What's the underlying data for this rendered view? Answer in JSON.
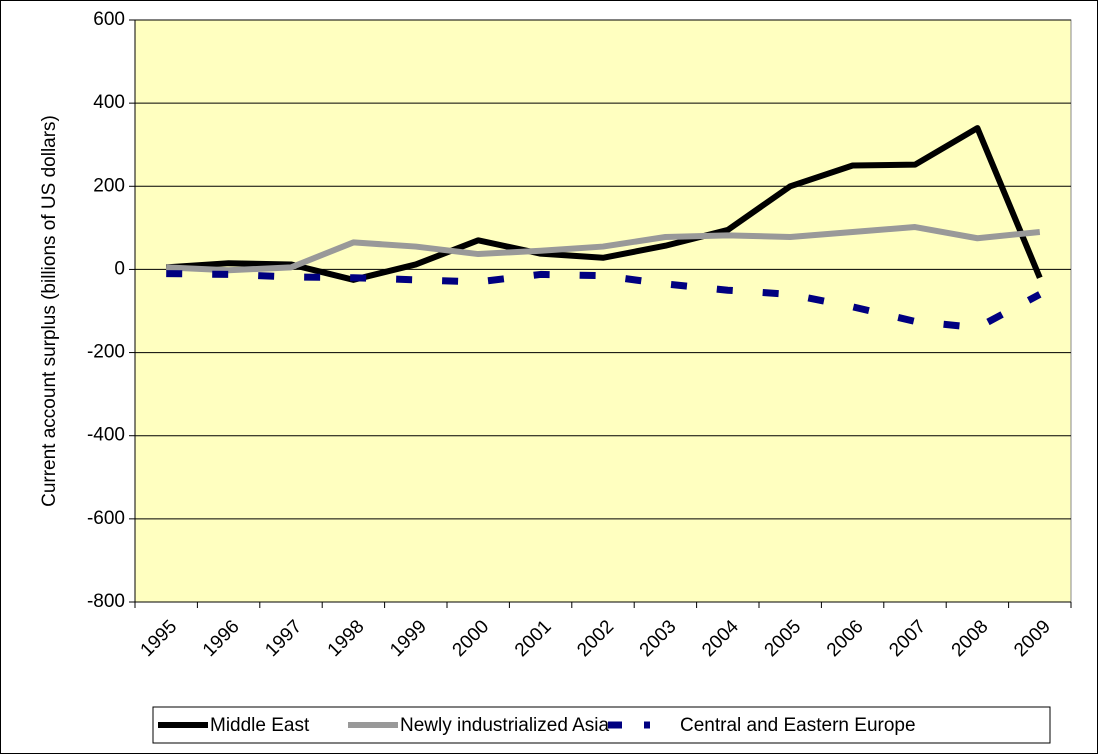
{
  "chart_data": {
    "type": "line",
    "y_label": "Current account surplus (billions of US dollars)",
    "categories": [
      "1995",
      "1996",
      "1997",
      "1998",
      "1999",
      "2000",
      "2001",
      "2002",
      "2003",
      "2004",
      "2005",
      "2006",
      "2007",
      "2008",
      "2009"
    ],
    "series": [
      {
        "name": "Middle East",
        "color": "#000000",
        "dashed": false,
        "values": [
          5,
          15,
          12,
          -25,
          12,
          70,
          38,
          28,
          57,
          95,
          200,
          250,
          252,
          340,
          -20
        ]
      },
      {
        "name": "Newly industrialized Asia",
        "color": "#999999",
        "dashed": false,
        "values": [
          5,
          -2,
          5,
          65,
          55,
          37,
          45,
          55,
          78,
          82,
          78,
          90,
          102,
          75,
          90
        ]
      },
      {
        "name": "Central and Eastern Europe",
        "color": "#000080",
        "dashed": true,
        "values": [
          -10,
          -12,
          -18,
          -20,
          -25,
          -30,
          -12,
          -15,
          -35,
          -50,
          -60,
          -90,
          -125,
          -140,
          -60
        ]
      }
    ],
    "ylim": [
      -800,
      600
    ],
    "yticks": [
      -800,
      -600,
      -400,
      -200,
      0,
      200,
      400,
      600
    ],
    "grid": true,
    "legend": "bottom",
    "plot_background": "#ffffc0"
  }
}
